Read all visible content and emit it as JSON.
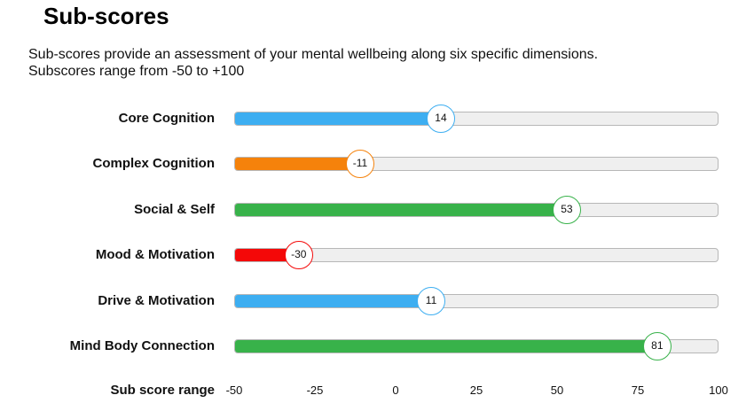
{
  "title": "Sub-scores",
  "description": [
    "Sub-scores provide an assessment of your mental wellbeing along six specific dimensions.",
    "Subscores range from -50 to +100"
  ],
  "chart_data": {
    "type": "bar",
    "orientation": "horizontal",
    "xlim": [
      -50,
      100
    ],
    "xlabel": "Sub score range",
    "xticks": [
      "-50",
      "-25",
      "0",
      "25",
      "50",
      "75",
      "100"
    ],
    "tick_values": [
      -50,
      -25,
      0,
      25,
      50,
      75,
      100
    ],
    "categories": [
      "Core Cognition",
      "Complex Cognition",
      "Social & Self",
      "Mood & Motivation",
      "Drive & Motivation",
      "Mind Body Connection"
    ],
    "values": [
      14,
      -11,
      53,
      -30,
      11,
      81
    ],
    "colors": [
      "#3daef1",
      "#f5820b",
      "#38b24a",
      "#f40808",
      "#3daef1",
      "#38b24a"
    ],
    "grid": false
  }
}
